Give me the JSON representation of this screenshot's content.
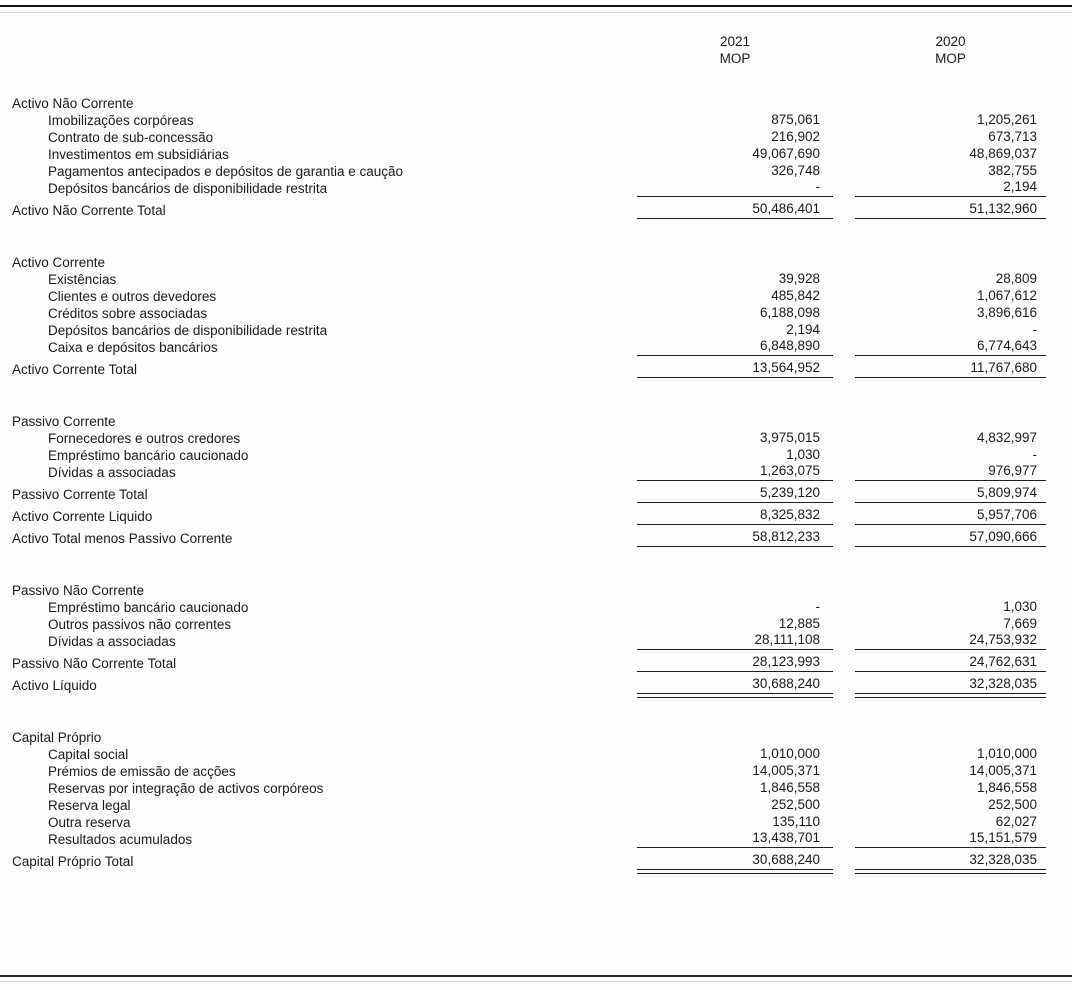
{
  "columns": {
    "c2021": {
      "year": "2021",
      "currency": "MOP"
    },
    "c2020": {
      "year": "2020",
      "currency": "MOP"
    }
  },
  "table": {
    "rows": [
      {
        "type": "section",
        "label": "Activo Não Corrente"
      },
      {
        "type": "item",
        "label": "Imobilizações corpóreas",
        "v1": "875,061",
        "v2": "1,205,261"
      },
      {
        "type": "item",
        "label": "Contrato de sub-concessão",
        "v1": "216,902",
        "v2": "673,713"
      },
      {
        "type": "item",
        "label": "Investimentos em subsidiárias",
        "v1": "49,067,690",
        "v2": "48,869,037"
      },
      {
        "type": "item",
        "label": "Pagamentos antecipados e depósitos de garantia e caução",
        "v1": "326,748",
        "v2": "382,755"
      },
      {
        "type": "item",
        "label": "Depósitos bancários de disponibilidade restrita",
        "v1": "-",
        "v2": "2,194",
        "line": "single"
      },
      {
        "type": "total",
        "label": "Activo Não Corrente Total",
        "v1": "50,486,401",
        "v2": "51,132,960",
        "line": "single"
      },
      {
        "type": "spacer"
      },
      {
        "type": "section",
        "label": "Activo Corrente"
      },
      {
        "type": "item",
        "label": "Existências",
        "v1": "39,928",
        "v2": "28,809"
      },
      {
        "type": "item",
        "label": "Clientes e outros devedores",
        "v1": "485,842",
        "v2": "1,067,612"
      },
      {
        "type": "item",
        "label": "Créditos sobre associadas",
        "v1": "6,188,098",
        "v2": "3,896,616"
      },
      {
        "type": "item",
        "label": "Depósitos bancários de disponibilidade restrita",
        "v1": "2,194",
        "v2": "-"
      },
      {
        "type": "item",
        "label": "Caixa e depósitos bancários",
        "v1": "6,848,890",
        "v2": "6,774,643",
        "line": "single"
      },
      {
        "type": "total",
        "label": "Activo Corrente Total",
        "v1": "13,564,952",
        "v2": "11,767,680",
        "line": "single"
      },
      {
        "type": "spacer"
      },
      {
        "type": "section",
        "label": "Passivo Corrente"
      },
      {
        "type": "item",
        "label": "Fornecedores e outros credores",
        "v1": "3,975,015",
        "v2": "4,832,997"
      },
      {
        "type": "item",
        "label": "Empréstimo bancário caucionado",
        "v1": "1,030",
        "v2": "-"
      },
      {
        "type": "item",
        "label": "Dívidas a associadas",
        "v1": "1,263,075",
        "v2": "976,977",
        "line": "single"
      },
      {
        "type": "total",
        "label": "Passivo Corrente Total",
        "v1": "5,239,120",
        "v2": "5,809,974",
        "line": "single"
      },
      {
        "type": "total",
        "label": "Activo Corrente Liquido",
        "v1": "8,325,832",
        "v2": "5,957,706",
        "line": "single"
      },
      {
        "type": "total",
        "label": "Activo Total menos Passivo Corrente",
        "v1": "58,812,233",
        "v2": "57,090,666",
        "line": "single"
      },
      {
        "type": "spacer"
      },
      {
        "type": "section",
        "label": "Passivo Não Corrente"
      },
      {
        "type": "item",
        "label": "Empréstimo bancário caucionado",
        "v1": "-",
        "v2": "1,030"
      },
      {
        "type": "item",
        "label": "Outros passivos não correntes",
        "v1": "12,885",
        "v2": "7,669"
      },
      {
        "type": "item",
        "label": "Dívidas a associadas",
        "v1": "28,111,108",
        "v2": "24,753,932",
        "line": "single"
      },
      {
        "type": "total",
        "label": "Passivo Não Corrente Total",
        "v1": "28,123,993",
        "v2": "24,762,631",
        "line": "single"
      },
      {
        "type": "total",
        "label": "Activo Líquido",
        "v1": "30,688,240",
        "v2": "32,328,035",
        "line": "double"
      },
      {
        "type": "spacer"
      },
      {
        "type": "section",
        "label": "Capital Próprio"
      },
      {
        "type": "item",
        "label": "Capital social",
        "v1": "1,010,000",
        "v2": "1,010,000"
      },
      {
        "type": "item",
        "label": "Prémios de emissão de acções",
        "v1": "14,005,371",
        "v2": "14,005,371"
      },
      {
        "type": "item",
        "label": "Reservas por integração de activos corpóreos",
        "v1": "1,846,558",
        "v2": "1,846,558"
      },
      {
        "type": "item",
        "label": "Reserva legal",
        "v1": "252,500",
        "v2": "252,500"
      },
      {
        "type": "item",
        "label": "Outra reserva",
        "v1": "135,110",
        "v2": "62,027"
      },
      {
        "type": "item",
        "label": "Resultados acumulados",
        "v1": "13,438,701",
        "v2": "15,151,579",
        "line": "single"
      },
      {
        "type": "total",
        "label": "Capital Próprio Total",
        "v1": "30,688,240",
        "v2": "32,328,035",
        "line": "double"
      }
    ]
  }
}
